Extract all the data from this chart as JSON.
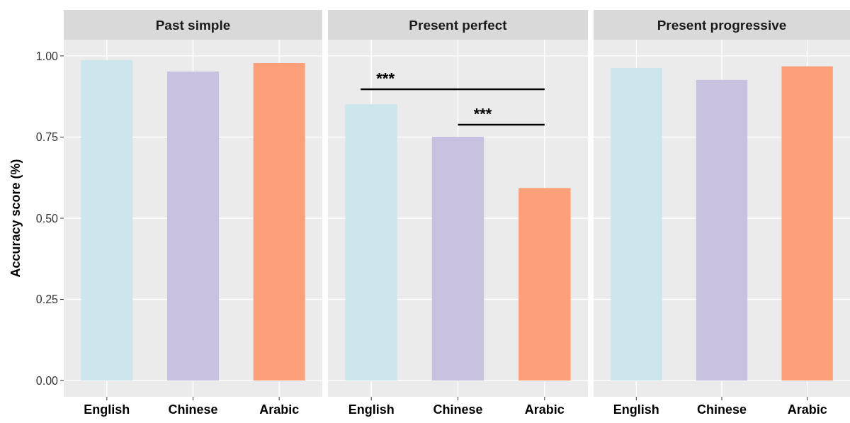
{
  "chart_data": [
    {
      "type": "bar",
      "title": "Past simple",
      "ylabel": "Accuracy score (%)",
      "categories": [
        "English",
        "Chinese",
        "Arabic"
      ],
      "values": [
        0.987,
        0.952,
        0.978
      ],
      "colors": [
        "#cce6ee",
        "#c8c2e0",
        "#fca07a"
      ],
      "ylim": [
        -0.05,
        1.05
      ],
      "yticks": [
        {
          "value": 0,
          "label": "0.00"
        },
        {
          "value": 0.25,
          "label": "0.25"
        },
        {
          "value": 0.5,
          "label": "0.50"
        },
        {
          "value": 0.75,
          "label": "0.75"
        },
        {
          "value": 1,
          "label": "1.00"
        }
      ],
      "grid": true
    },
    {
      "type": "bar",
      "title": "Present perfect",
      "categories": [
        "English",
        "Chinese",
        "Arabic"
      ],
      "values": [
        0.851,
        0.751,
        0.593
      ],
      "colors": [
        "#cce6ee",
        "#c8c2e0",
        "#fca07a"
      ],
      "ylim": [
        -0.05,
        1.05
      ],
      "yticks": [
        0,
        0.25,
        0.5,
        0.75,
        1
      ],
      "grid": true,
      "tick_labels": "x",
      "annotations": [
        "***",
        "***"
      ]
    },
    {
      "type": "bar",
      "title": "Present progressive",
      "categories": [
        "English",
        "Chinese",
        "Arabic"
      ],
      "values": [
        0.963,
        0.926,
        0.968
      ],
      "colors": [
        "#cce6ee",
        "#c8c2e0",
        "#fca07a"
      ],
      "ylim": [
        -0.05,
        1.05
      ],
      "yticks": [
        0,
        0.25,
        0.5,
        0.75,
        1
      ],
      "grid": true,
      "tick_labels": "x"
    }
  ]
}
